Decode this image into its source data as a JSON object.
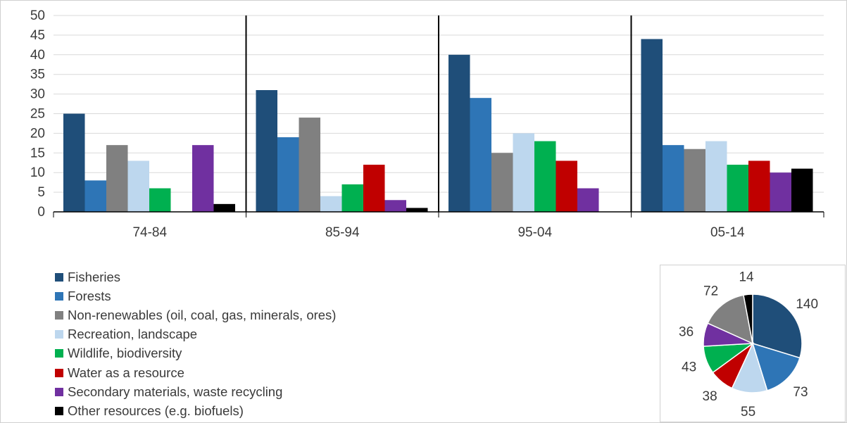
{
  "chart_data": [
    {
      "type": "bar",
      "categories": [
        "74-84",
        "85-94",
        "95-04",
        "05-14"
      ],
      "ylim": [
        0,
        50
      ],
      "yticks": [
        0,
        5,
        10,
        15,
        20,
        25,
        30,
        35,
        40,
        45,
        50
      ],
      "grid": true,
      "legend_position": "bottom-left",
      "series": [
        {
          "name": "Fisheries",
          "color": "#1f4e79",
          "values": [
            25,
            31,
            40,
            44
          ]
        },
        {
          "name": "Forests",
          "color": "#2e75b6",
          "values": [
            8,
            19,
            29,
            17
          ]
        },
        {
          "name": "Non-renewables (oil, coal, gas, minerals, ores)",
          "color": "#808080",
          "values": [
            17,
            24,
            15,
            16
          ]
        },
        {
          "name": "Recreation, landscape",
          "color": "#bdd7ee",
          "values": [
            13,
            4,
            20,
            18
          ]
        },
        {
          "name": "Wildlife, biodiversity",
          "color": "#00b050",
          "values": [
            6,
            7,
            18,
            12
          ]
        },
        {
          "name": "Water as a resource",
          "color": "#c00000",
          "values": [
            0,
            12,
            13,
            13
          ]
        },
        {
          "name": "Secondary materials, waste recycling",
          "color": "#7030a0",
          "values": [
            17,
            3,
            6,
            10
          ]
        },
        {
          "name": "Other resources (e.g. biofuels)",
          "color": "#000000",
          "values": [
            2,
            1,
            0,
            11
          ]
        }
      ]
    },
    {
      "type": "pie",
      "values": [
        140,
        73,
        55,
        38,
        43,
        36,
        72,
        14
      ],
      "colors": [
        "#1f4e79",
        "#2e75b6",
        "#bdd7ee",
        "#c00000",
        "#00b050",
        "#7030a0",
        "#808080",
        "#000000"
      ]
    }
  ]
}
